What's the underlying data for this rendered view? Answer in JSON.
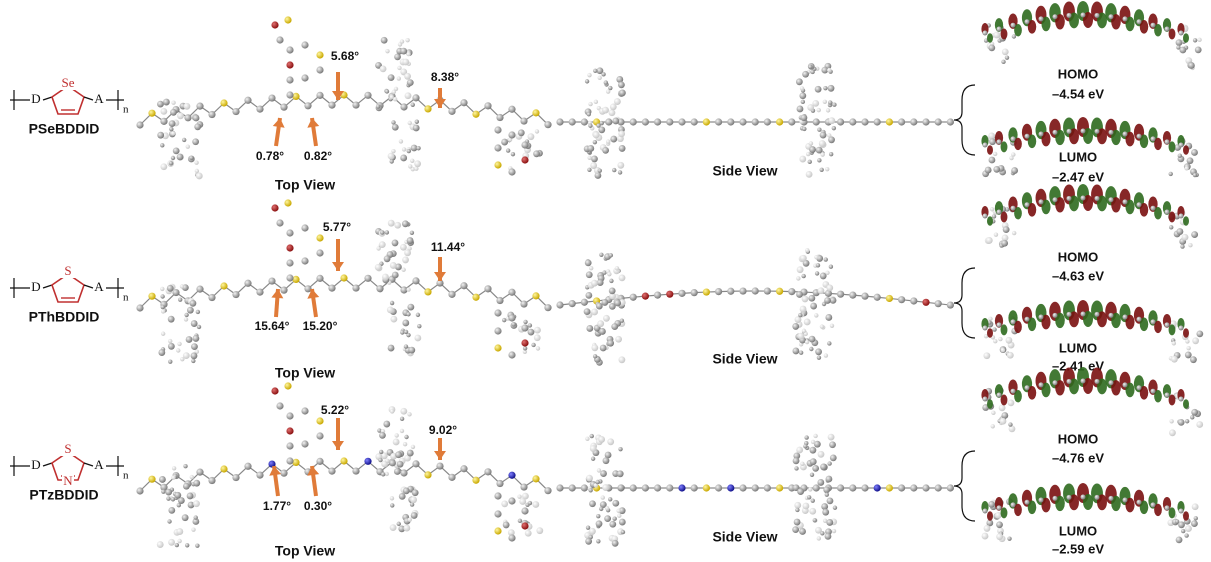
{
  "rows": [
    {
      "structure": {
        "donor": "D",
        "acceptor": "A",
        "repeat": "n",
        "heteroatoms": [
          "Se"
        ]
      },
      "name": "PSeBDDID",
      "angles": [
        "5.68°",
        "8.38°",
        "0.78°",
        "0.82°"
      ],
      "top_view": "Top View",
      "side_view": "Side View",
      "homo": {
        "label": "HOMO",
        "energy": "–4.54 eV"
      },
      "lumo": {
        "label": "LUMO",
        "energy": "–2.47 eV"
      }
    },
    {
      "structure": {
        "donor": "D",
        "acceptor": "A",
        "repeat": "n",
        "heteroatoms": [
          "S"
        ]
      },
      "name": "PThBDDID",
      "angles": [
        "5.77°",
        "11.44°",
        "15.64°",
        "15.20°"
      ],
      "top_view": "Top View",
      "side_view": "Side View",
      "homo": {
        "label": "HOMO",
        "energy": "–4.63 eV"
      },
      "lumo": {
        "label": "LUMO",
        "energy": "–2.41 eV"
      }
    },
    {
      "structure": {
        "donor": "D",
        "acceptor": "A",
        "repeat": "n",
        "heteroatoms": [
          "S",
          "N"
        ]
      },
      "name": "PTzBDDID",
      "angles": [
        "5.22°",
        "9.02°",
        "1.77°",
        "0.30°"
      ],
      "top_view": "Top View",
      "side_view": "Side View",
      "homo": {
        "label": "HOMO",
        "energy": "–4.76 eV"
      },
      "lumo": {
        "label": "LUMO",
        "energy": "–2.59 eV"
      }
    }
  ]
}
